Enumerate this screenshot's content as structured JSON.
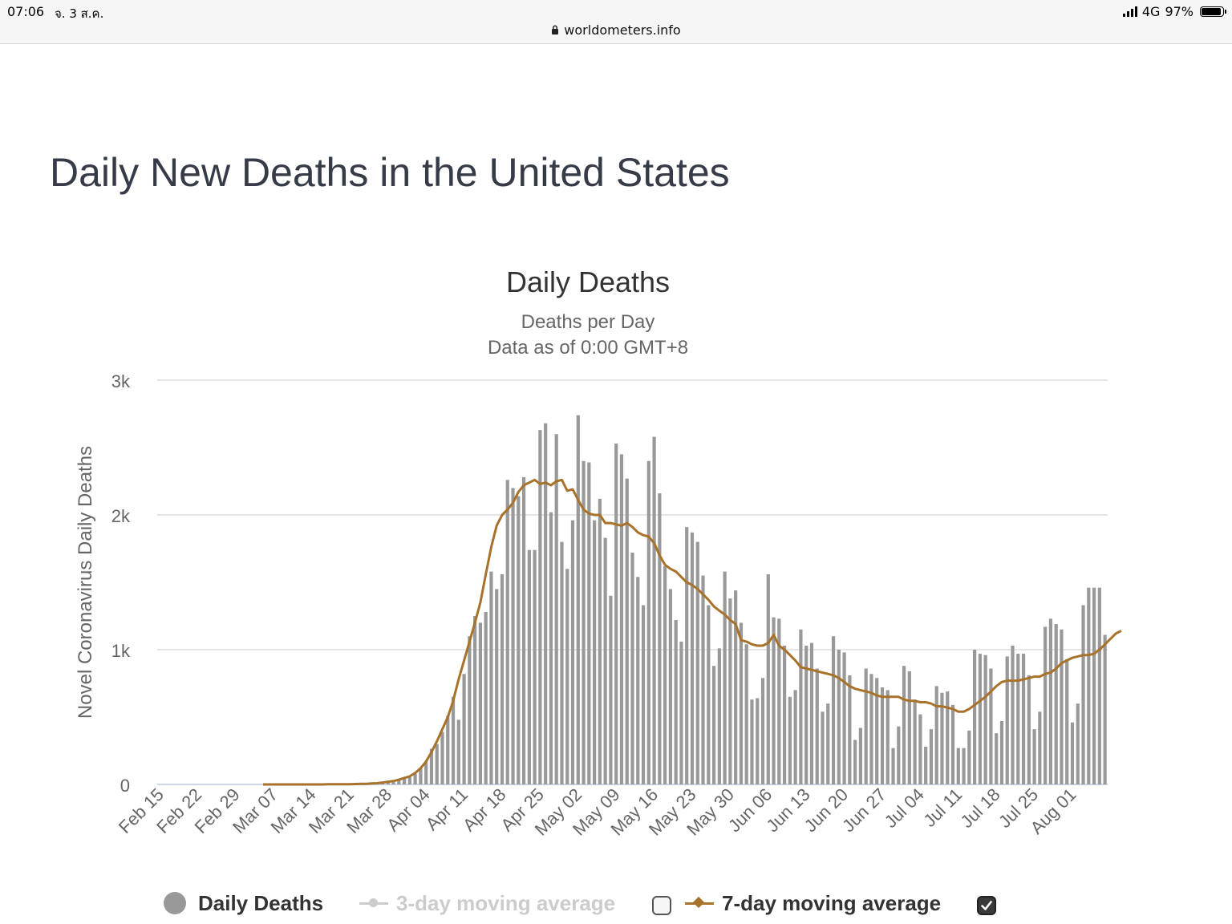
{
  "status_bar": {
    "time": "07:06",
    "date": "จ. 3 ส.ค.",
    "url": "worldometers.info",
    "network": "4G",
    "battery": "97%"
  },
  "page": {
    "heading": "Daily New Deaths in the United States"
  },
  "legend": {
    "daily": "Daily Deaths",
    "three_day": "3-day moving average",
    "three_day_checked": false,
    "seven_day": "7-day moving average",
    "seven_day_checked": true
  },
  "colors": {
    "bars": "#999999",
    "seven_day_line": "#a8722b",
    "three_day_disabled": "#cccccc",
    "grid": "#e6e6e6",
    "text": "#333333"
  },
  "chart_data": {
    "type": "bar",
    "title": "Daily Deaths",
    "subtitle": [
      "Deaths per Day",
      "Data as of 0:00 GMT+8"
    ],
    "ylabel": "Novel Coronavirus Daily Deaths",
    "ylim": [
      0,
      3000
    ],
    "yticks": [
      "0",
      "1k",
      "2k",
      "3k"
    ],
    "xtick_labels": [
      "Feb 15",
      "Feb 22",
      "Feb 29",
      "Mar 07",
      "Mar 14",
      "Mar 21",
      "Mar 28",
      "Apr 04",
      "Apr 11",
      "Apr 18",
      "Apr 25",
      "May 02",
      "May 09",
      "May 16",
      "May 23",
      "May 30",
      "Jun 06",
      "Jun 13",
      "Jun 20",
      "Jun 27",
      "Jul 04",
      "Jul 11",
      "Jul 18",
      "Jul 25",
      "Aug 01"
    ],
    "x_start": "Feb 15",
    "grid": true,
    "legend_position": "bottom",
    "series": [
      {
        "name": "Daily Deaths",
        "type": "bar",
        "values": [
          0,
          0,
          0,
          0,
          0,
          0,
          0,
          0,
          0,
          0,
          0,
          0,
          0,
          0,
          0,
          0,
          0,
          0,
          0,
          0,
          0,
          0,
          0,
          0,
          0,
          0,
          0,
          0,
          0,
          0,
          0,
          0,
          0,
          1,
          2,
          1,
          1,
          3,
          2,
          5,
          4,
          6,
          12,
          17,
          35,
          48,
          53,
          80,
          120,
          170,
          265,
          300,
          390,
          510,
          650,
          480,
          820,
          1100,
          1250,
          1200,
          1280,
          1580,
          1450,
          1560,
          2260,
          2200,
          2140,
          2280,
          1740,
          1740,
          2630,
          2680,
          2020,
          2600,
          1800,
          1600,
          1960,
          2740,
          2400,
          2390,
          1960,
          2120,
          1830,
          1400,
          2530,
          2450,
          2270,
          1720,
          1540,
          1330,
          2400,
          2580,
          2160,
          1620,
          1450,
          1220,
          1060,
          1910,
          1870,
          1800,
          1550,
          1330,
          880,
          1010,
          1580,
          1380,
          1440,
          1200,
          1040,
          630,
          640,
          790,
          1560,
          1240,
          1230,
          1030,
          650,
          700,
          1150,
          1030,
          1050,
          860,
          540,
          600,
          1100,
          1000,
          980,
          810,
          330,
          420,
          860,
          820,
          790,
          720,
          700,
          270,
          430,
          880,
          840,
          630,
          520,
          280,
          410,
          730,
          680,
          690,
          590,
          270,
          270,
          400,
          1000,
          970,
          960,
          860,
          380,
          470,
          950,
          1030,
          970,
          970,
          810,
          410,
          540,
          1170,
          1230,
          1190,
          1150,
          930,
          460,
          600,
          1330,
          1460,
          1460,
          1460,
          1110
        ]
      },
      {
        "name": "7-day moving average",
        "type": "line",
        "values": [
          null,
          null,
          null,
          null,
          null,
          null,
          null,
          null,
          null,
          null,
          null,
          null,
          null,
          null,
          null,
          null,
          null,
          null,
          null,
          0,
          0,
          0,
          0,
          0,
          0,
          0,
          0,
          0,
          0,
          0,
          0,
          1,
          1,
          1,
          2,
          2,
          3,
          4,
          5,
          7,
          9,
          14,
          20,
          25,
          35,
          48,
          60,
          85,
          120,
          170,
          240,
          320,
          410,
          500,
          620,
          780,
          920,
          1060,
          1200,
          1350,
          1560,
          1760,
          1920,
          2000,
          2040,
          2090,
          2170,
          2220,
          2240,
          2260,
          2230,
          2240,
          2220,
          2250,
          2260,
          2180,
          2190,
          2110,
          2040,
          2010,
          2000,
          2000,
          1940,
          1940,
          1930,
          1920,
          1940,
          1910,
          1870,
          1850,
          1840,
          1790,
          1700,
          1630,
          1600,
          1580,
          1540,
          1500,
          1480,
          1450,
          1410,
          1370,
          1320,
          1290,
          1260,
          1220,
          1190,
          1070,
          1060,
          1040,
          1030,
          1030,
          1050,
          1110,
          1030,
          1000,
          960,
          920,
          870,
          860,
          850,
          840,
          830,
          820,
          810,
          790,
          760,
          730,
          710,
          700,
          690,
          680,
          660,
          650,
          650,
          650,
          650,
          630,
          620,
          620,
          610,
          610,
          600,
          580,
          580,
          570,
          560,
          540,
          540,
          560,
          590,
          620,
          650,
          690,
          730,
          760,
          770,
          770,
          770,
          780,
          790,
          800,
          800,
          820,
          830,
          860,
          900,
          920,
          940,
          950,
          960,
          960,
          970,
          1000,
          1040,
          1080,
          1120,
          1140
        ]
      }
    ]
  }
}
